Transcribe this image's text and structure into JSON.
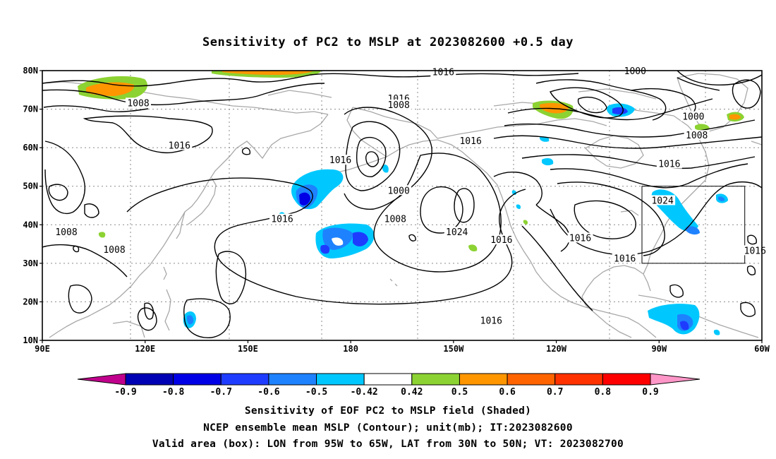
{
  "title": "Sensitivity of PC2 to MSLP at 2023082600 +0.5 day",
  "lat_labels": [
    "80N",
    "70N",
    "60N",
    "50N",
    "40N",
    "30N",
    "20N",
    "10N"
  ],
  "lon_labels": [
    "90E",
    "120E",
    "150E",
    "180",
    "150W",
    "120W",
    "90W",
    "60W"
  ],
  "contour_labels": [
    {
      "text": "1016",
      "lon": -153,
      "lat": 79.5
    },
    {
      "text": "1000",
      "lon": -97,
      "lat": 79.8
    },
    {
      "text": "1008",
      "lon": 118,
      "lat": 71.5
    },
    {
      "text": "1016",
      "lon": -166,
      "lat": 72.7
    },
    {
      "text": "1008",
      "lon": -166,
      "lat": 71.0
    },
    {
      "text": "1000",
      "lon": -80,
      "lat": 68.0
    },
    {
      "text": "1008",
      "lon": -79,
      "lat": 63.1
    },
    {
      "text": "1016",
      "lon": 130,
      "lat": 60.5
    },
    {
      "text": "1016",
      "lon": -145,
      "lat": 61.7
    },
    {
      "text": "1016",
      "lon": 177,
      "lat": 56.7
    },
    {
      "text": "1016",
      "lon": -87,
      "lat": 55.7
    },
    {
      "text": "1000",
      "lon": -166,
      "lat": 48.8
    },
    {
      "text": "1024",
      "lon": -89,
      "lat": 46.2
    },
    {
      "text": "1016",
      "lon": 160,
      "lat": 41.4
    },
    {
      "text": "1008",
      "lon": -167,
      "lat": 41.4
    },
    {
      "text": "1008",
      "lon": 97,
      "lat": 38.0
    },
    {
      "text": "1024",
      "lon": -149,
      "lat": 38.0
    },
    {
      "text": "1016",
      "lon": -136,
      "lat": 36.0
    },
    {
      "text": "1016",
      "lon": -113,
      "lat": 36.5
    },
    {
      "text": "1008",
      "lon": 111,
      "lat": 33.5
    },
    {
      "text": "1016",
      "lon": -100,
      "lat": 31.2
    },
    {
      "text": "1016",
      "lon": -62,
      "lat": 33.2
    },
    {
      "text": "1016",
      "lon": -139,
      "lat": 15.0
    }
  ],
  "colorbar": {
    "labels": [
      "-0.9",
      "-0.8",
      "-0.7",
      "-0.6",
      "-0.5",
      "-0.42",
      "0.42",
      "0.5",
      "0.6",
      "0.7",
      "0.8",
      "0.9"
    ],
    "colors": [
      "#c0008c",
      "#0000b4",
      "#0000e6",
      "#1e3cff",
      "#1e82ff",
      "#00c8ff",
      "#ffffff",
      "#8cd232",
      "#ff9600",
      "#ff6400",
      "#ff3200",
      "#ff0000",
      "#ff96c8"
    ]
  },
  "valid_box": {
    "lon_min": -95,
    "lon_max": -65,
    "lat_min": 30,
    "lat_max": 50
  },
  "captions": [
    "Sensitivity of EOF PC2 to MSLP field (Shaded)",
    "NCEP ensemble mean MSLP (Contour); unit(mb); IT:2023082600",
    "Valid area (box): LON from 95W to 65W, LAT from 30N to 50N; VT: 2023082700"
  ]
}
